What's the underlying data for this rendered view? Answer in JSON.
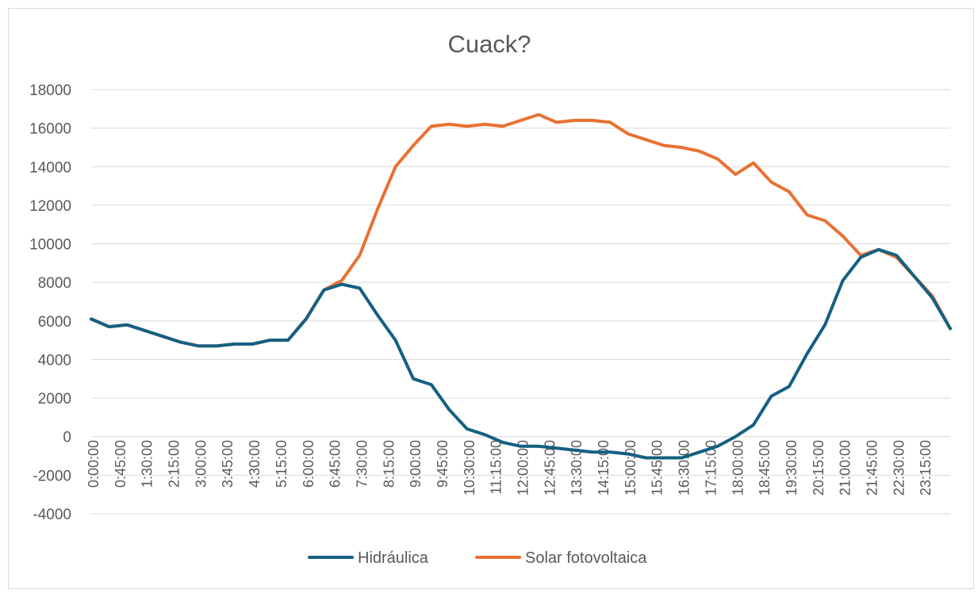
{
  "chart_data": {
    "type": "line",
    "title": "Cuack?",
    "xlabel": "",
    "ylabel": "",
    "ylim": [
      -4000,
      18000
    ],
    "yticks": [
      -4000,
      -2000,
      0,
      2000,
      4000,
      6000,
      8000,
      10000,
      12000,
      14000,
      16000,
      18000
    ],
    "xticks": [
      "0:00:00",
      "0:45:00",
      "1:30:00",
      "2:15:00",
      "3:00:00",
      "3:45:00",
      "4:30:00",
      "5:15:00",
      "6:00:00",
      "6:45:00",
      "7:30:00",
      "8:15:00",
      "9:00:00",
      "9:45:00",
      "10:30:00",
      "11:15:00",
      "12:00:00",
      "12:45:00",
      "13:30:00",
      "14:15:00",
      "15:00:00",
      "15:45:00",
      "16:30:00",
      "17:15:00",
      "18:00:00",
      "18:45:00",
      "19:30:00",
      "20:15:00",
      "21:00:00",
      "21:45:00",
      "22:30:00",
      "23:15:00"
    ],
    "x_hours": [
      0,
      0.5,
      1,
      1.5,
      2,
      2.5,
      3,
      3.5,
      4,
      4.5,
      5,
      5.5,
      6,
      6.5,
      7,
      7.5,
      8,
      8.5,
      9,
      9.5,
      10,
      10.5,
      11,
      11.5,
      12,
      12.5,
      13,
      13.5,
      14,
      14.5,
      15,
      15.5,
      16,
      16.5,
      17,
      17.5,
      18,
      18.5,
      19,
      19.5,
      20,
      20.5,
      21,
      21.5,
      22,
      22.5,
      23,
      23.5,
      24
    ],
    "grid": true,
    "legend_position": "bottom",
    "series": [
      {
        "name": "Hidráulica",
        "color": "#156082",
        "values": [
          6100,
          5700,
          5800,
          5500,
          5200,
          4900,
          4700,
          4700,
          4800,
          4800,
          5000,
          5000,
          6100,
          7600,
          7900,
          7700,
          6300,
          5000,
          3000,
          2700,
          1400,
          400,
          100,
          -300,
          -500,
          -500,
          -600,
          -700,
          -800,
          -800,
          -900,
          -1100,
          -1100,
          -1100,
          -800,
          -500,
          0,
          600,
          2100,
          2600,
          4300,
          5800,
          8100,
          9300,
          9700,
          9400,
          8300,
          7200,
          5600
        ]
      },
      {
        "name": "Solar fotovoltaica",
        "color": "#E97132",
        "values": [
          6100,
          5700,
          5800,
          5500,
          5200,
          4900,
          4700,
          4700,
          4800,
          4800,
          5000,
          5000,
          6100,
          7600,
          8100,
          9400,
          11800,
          14000,
          15100,
          16100,
          16200,
          16100,
          16200,
          16100,
          16400,
          16700,
          16300,
          16400,
          16400,
          16300,
          15700,
          15400,
          15100,
          15000,
          14800,
          14400,
          13600,
          14200,
          13200,
          12700,
          11500,
          11200,
          10400,
          9400,
          9700,
          9300,
          8300,
          7300,
          5600
        ]
      }
    ]
  }
}
